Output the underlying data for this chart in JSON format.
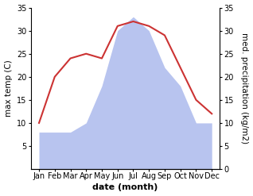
{
  "months": [
    "Jan",
    "Feb",
    "Mar",
    "Apr",
    "May",
    "Jun",
    "Jul",
    "Aug",
    "Sep",
    "Oct",
    "Nov",
    "Dec"
  ],
  "temperature": [
    10,
    20,
    24,
    25,
    24,
    31,
    32,
    31,
    29,
    22,
    15,
    12
  ],
  "precipitation": [
    8,
    8,
    8,
    10,
    18,
    30,
    33,
    30,
    22,
    18,
    10,
    10
  ],
  "temp_color": "#cc3333",
  "precip_color": "#b8c4ef",
  "ylabel_left": "max temp (C)",
  "ylabel_right": "med. precipitation (kg/m2)",
  "xlabel": "date (month)",
  "ylim_left": [
    0,
    35
  ],
  "ylim_right": [
    0,
    35
  ],
  "yticks_left": [
    5,
    10,
    15,
    20,
    25,
    30,
    35
  ],
  "yticks_right": [
    0,
    5,
    10,
    15,
    20,
    25,
    30,
    35
  ],
  "background_color": "#ffffff",
  "label_fontsize": 7.5,
  "tick_fontsize": 7,
  "xlabel_fontsize": 8
}
